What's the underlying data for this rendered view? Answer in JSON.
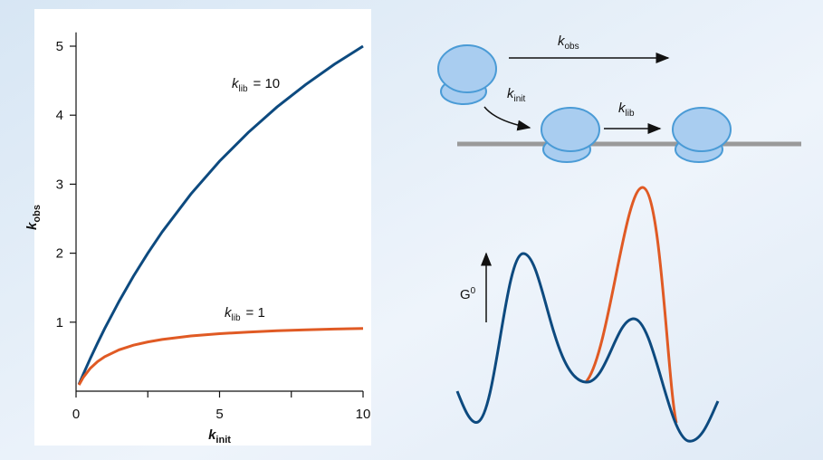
{
  "chart_data": {
    "type": "line",
    "x": [
      0.1,
      0.25,
      0.5,
      0.75,
      1,
      1.5,
      2,
      2.5,
      3,
      4,
      5,
      6,
      7,
      8,
      9,
      10
    ],
    "series": [
      {
        "color": "#0d4a7f",
        "label": {
          "symbol": "k",
          "sub": "lib",
          "text": "= 10"
        },
        "values": [
          0.099,
          0.244,
          0.476,
          0.698,
          0.909,
          1.304,
          1.667,
          2,
          2.308,
          2.857,
          3.333,
          3.75,
          4.118,
          4.444,
          4.737,
          5
        ]
      },
      {
        "color": "#e05a24",
        "label": {
          "symbol": "k",
          "sub": "lib",
          "text": "= 1"
        },
        "values": [
          0.091,
          0.2,
          0.333,
          0.429,
          0.5,
          0.6,
          0.667,
          0.714,
          0.75,
          0.8,
          0.833,
          0.857,
          0.875,
          0.889,
          0.9,
          0.909
        ]
      }
    ],
    "xlabel": {
      "symbol": "k",
      "sub": "init"
    },
    "ylabel": {
      "symbol": "k",
      "sub": "obs"
    },
    "xlim": [
      0,
      10
    ],
    "ylim": [
      0,
      5.2
    ],
    "xticks": [
      0,
      5,
      10
    ],
    "xminor_ticks": [
      2.5,
      7.5
    ],
    "yticks": [
      1,
      2,
      3,
      4,
      5
    ]
  },
  "diagram": {
    "rate_obs": {
      "symbol": "k",
      "sub": "obs"
    },
    "rate_init": {
      "symbol": "k",
      "sub": "init"
    },
    "rate_lib": {
      "symbol": "k",
      "sub": "lib"
    },
    "energy_axis": {
      "symbol": "G",
      "sup": "0"
    }
  }
}
